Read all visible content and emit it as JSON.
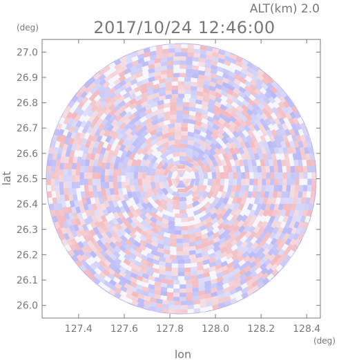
{
  "header": {
    "altitude_label": "ALT(km)  2.0",
    "timestamp": "2017/10/24 12:46:00"
  },
  "chart_data": {
    "type": "heatmap",
    "description_of_field": "radar PPI at constant altitude, diverging red/blue values inside circular coverage",
    "xlabel": "lon",
    "ylabel": "lat",
    "x_unit": "(deg)",
    "y_unit": "(deg)",
    "xlim": [
      127.24,
      128.46
    ],
    "ylim": [
      25.95,
      27.05
    ],
    "x_ticks": [
      127.4,
      127.6,
      127.8,
      128.0,
      128.2,
      128.4
    ],
    "y_ticks": [
      26.0,
      26.1,
      26.2,
      26.3,
      26.4,
      26.5,
      26.6,
      26.7,
      26.8,
      26.9,
      27.0
    ],
    "x_tick_labels": [
      "127.4",
      "127.6",
      "127.8",
      "128.0",
      "128.2",
      "128.4"
    ],
    "y_tick_labels": [
      "26.0",
      "26.1",
      "26.2",
      "26.3",
      "26.4",
      "26.5",
      "26.6",
      "26.7",
      "26.8",
      "26.9",
      "27.0"
    ],
    "coverage_center": [
      127.85,
      26.5
    ],
    "coverage_radius_deg_lat": 0.535,
    "colors": {
      "positive": "#f06b6b",
      "negative": "#6b6bf0",
      "neutral": "#ffffff",
      "axis": "#777777"
    }
  }
}
